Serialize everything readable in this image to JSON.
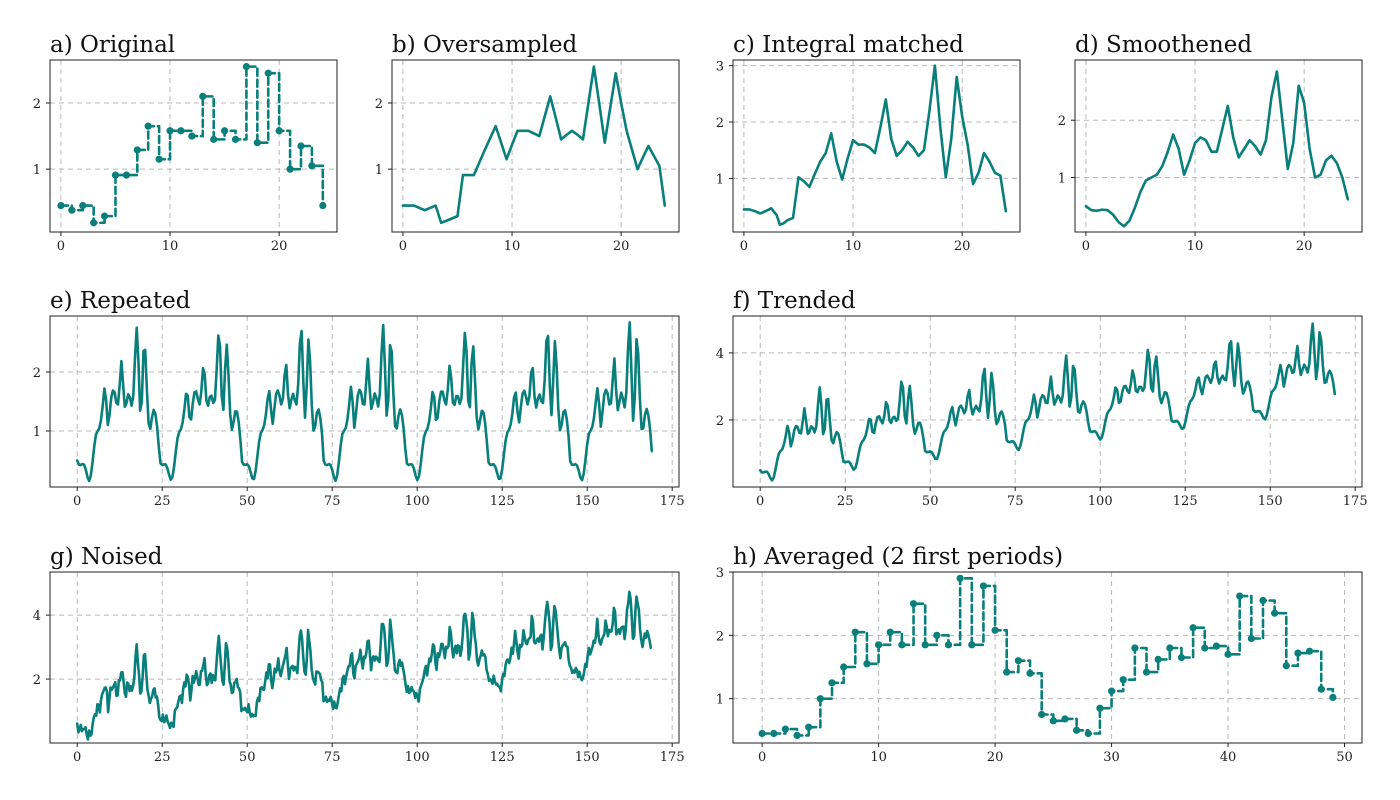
{
  "colors": {
    "series": "#087f7a",
    "grid": "#b8b8b8",
    "frame": "#222222"
  },
  "chart_data": [
    {
      "id": "a",
      "title": "a) Original",
      "type": "step",
      "markers": true,
      "dashed": true,
      "xlim": [
        -1,
        25.3
      ],
      "ylim": [
        0.05,
        2.65
      ],
      "xticks": [
        0,
        10,
        20
      ],
      "yticks": [
        1,
        2
      ],
      "grid": true,
      "x": [
        0,
        1,
        2,
        3,
        4,
        5,
        6,
        7,
        8,
        9,
        10,
        11,
        12,
        13,
        14,
        15,
        16,
        17,
        18,
        19,
        20,
        21,
        22,
        23,
        24
      ],
      "y": [
        0.45,
        0.38,
        0.45,
        0.19,
        0.29,
        0.91,
        0.91,
        1.29,
        1.65,
        1.15,
        1.58,
        1.58,
        1.5,
        2.1,
        1.45,
        1.58,
        1.45,
        2.55,
        1.4,
        2.45,
        1.58,
        1.0,
        1.35,
        1.05,
        0.45
      ]
    },
    {
      "id": "b",
      "title": "b) Oversampled",
      "type": "line",
      "xlim": [
        -1,
        25.3
      ],
      "ylim": [
        0.05,
        2.65
      ],
      "xticks": [
        0,
        10,
        20
      ],
      "yticks": [
        1,
        2
      ],
      "grid": true,
      "x": [
        0,
        1,
        2,
        3,
        3.5,
        4,
        5,
        5.5,
        6,
        6.5,
        7,
        7.5,
        8,
        8.5,
        9,
        9.5,
        10,
        10.5,
        11,
        11.5,
        12,
        12.5,
        13,
        13.5,
        14,
        14.5,
        15,
        15.5,
        16,
        16.5,
        17,
        17.5,
        18,
        18.5,
        19,
        19.5,
        20,
        20.5,
        21,
        21.5,
        22,
        22.5,
        23,
        23.5,
        24
      ],
      "y": [
        0.45,
        0.45,
        0.38,
        0.45,
        0.19,
        0.22,
        0.29,
        0.91,
        0.91,
        0.91,
        1.1,
        1.29,
        1.47,
        1.65,
        1.4,
        1.15,
        1.37,
        1.58,
        1.58,
        1.58,
        1.54,
        1.5,
        1.8,
        2.1,
        1.78,
        1.45,
        1.52,
        1.58,
        1.52,
        1.45,
        2.0,
        2.55,
        1.98,
        1.4,
        1.93,
        2.45,
        2.0,
        1.58,
        1.29,
        1.0,
        1.18,
        1.35,
        1.2,
        1.05,
        0.45
      ]
    },
    {
      "id": "c",
      "title": "c) Integral matched",
      "type": "line",
      "xlim": [
        -1,
        25.3
      ],
      "ylim": [
        0.05,
        3.1
      ],
      "xticks": [
        0,
        10,
        20
      ],
      "yticks": [
        1,
        2,
        3
      ],
      "grid": true,
      "x": [
        0,
        0.5,
        1,
        1.5,
        2,
        2.5,
        3,
        3.3,
        3.6,
        4,
        4.5,
        5,
        5.5,
        6,
        6.5,
        7,
        7.5,
        8,
        8.5,
        9,
        9.5,
        10,
        10.5,
        11,
        11.5,
        12,
        12.5,
        13,
        13.5,
        14,
        14.5,
        15,
        15.5,
        16,
        16.5,
        17,
        17.5,
        18,
        18.5,
        19,
        19.5,
        20,
        20.5,
        21,
        21.5,
        22,
        22.5,
        23,
        23.5,
        24
      ],
      "y": [
        0.45,
        0.45,
        0.42,
        0.38,
        0.42,
        0.47,
        0.35,
        0.18,
        0.2,
        0.26,
        0.3,
        1.02,
        0.95,
        0.85,
        1.08,
        1.3,
        1.45,
        1.8,
        1.3,
        0.98,
        1.35,
        1.68,
        1.6,
        1.6,
        1.55,
        1.45,
        1.9,
        2.4,
        1.7,
        1.4,
        1.5,
        1.65,
        1.55,
        1.4,
        1.5,
        2.2,
        3.0,
        1.9,
        1.02,
        1.7,
        2.8,
        2.1,
        1.6,
        0.9,
        1.1,
        1.45,
        1.3,
        1.1,
        1.05,
        0.42
      ]
    },
    {
      "id": "d",
      "title": "d) Smoothened",
      "type": "line",
      "xlim": [
        -1,
        25.3
      ],
      "ylim": [
        0.05,
        3.05
      ],
      "xticks": [
        0,
        10,
        20
      ],
      "yticks": [
        1,
        2
      ],
      "grid": true,
      "x": [
        0,
        0.5,
        1,
        1.5,
        2,
        2.5,
        3,
        3.5,
        4,
        4.5,
        5,
        5.5,
        6,
        6.5,
        7,
        7.5,
        8,
        8.5,
        9,
        9.5,
        10,
        10.5,
        11,
        11.5,
        12,
        12.5,
        13,
        13.5,
        14,
        14.5,
        15,
        15.5,
        16,
        16.5,
        17,
        17.5,
        18,
        18.5,
        19,
        19.5,
        20,
        20.5,
        21,
        21.5,
        22,
        22.5,
        23,
        23.5,
        24
      ],
      "y": [
        0.5,
        0.43,
        0.42,
        0.44,
        0.43,
        0.35,
        0.22,
        0.15,
        0.25,
        0.48,
        0.75,
        0.95,
        1.0,
        1.05,
        1.2,
        1.45,
        1.75,
        1.5,
        1.05,
        1.3,
        1.6,
        1.7,
        1.65,
        1.45,
        1.45,
        1.85,
        2.25,
        1.7,
        1.35,
        1.5,
        1.65,
        1.55,
        1.4,
        1.65,
        2.4,
        2.85,
        2.0,
        1.15,
        1.6,
        2.6,
        2.3,
        1.5,
        1.0,
        1.05,
        1.3,
        1.38,
        1.25,
        1.0,
        0.62
      ]
    },
    {
      "id": "e",
      "title": "e) Repeated",
      "type": "line",
      "generator": "repeat",
      "xlim": [
        -8,
        177
      ],
      "ylim": [
        0.05,
        2.95
      ],
      "xticks": [
        0,
        25,
        50,
        75,
        100,
        125,
        150,
        175
      ],
      "yticks": [
        1,
        2
      ],
      "grid": true,
      "period": 24.15,
      "repeats": 7,
      "x_end": 169,
      "base_from": "d"
    },
    {
      "id": "f",
      "title": "f) Trended",
      "type": "line",
      "generator": "trend",
      "xlim": [
        -8,
        177
      ],
      "ylim": [
        0.0,
        5.1
      ],
      "xticks": [
        0,
        25,
        50,
        75,
        100,
        125,
        150,
        175
      ],
      "yticks": [
        2,
        4
      ],
      "grid": true,
      "period": 24.15,
      "repeats": 7,
      "x_end": 169,
      "trend_per_unit": 0.0125,
      "base_from": "d"
    },
    {
      "id": "g",
      "title": "g) Noised",
      "type": "line",
      "generator": "noise",
      "xlim": [
        -8,
        177
      ],
      "ylim": [
        0.0,
        5.35
      ],
      "xticks": [
        0,
        25,
        50,
        75,
        100,
        125,
        150,
        175
      ],
      "yticks": [
        2,
        4
      ],
      "grid": true,
      "period": 24.15,
      "repeats": 7,
      "x_end": 169,
      "trend_per_unit": 0.0125,
      "noise_amp": 0.22,
      "base_from": "d"
    },
    {
      "id": "h",
      "title": "h) Averaged (2 first periods)",
      "type": "step",
      "markers": true,
      "dashed": true,
      "xlim": [
        -2.5,
        51.5
      ],
      "ylim": [
        0.3,
        3.0
      ],
      "xticks": [
        0,
        10,
        20,
        30,
        40,
        50
      ],
      "yticks": [
        1,
        2,
        3
      ],
      "grid": true,
      "x": [
        0,
        1,
        2,
        3,
        4,
        5,
        6,
        7,
        8,
        9,
        10,
        11,
        12,
        13,
        14,
        15,
        16,
        17,
        18,
        19,
        20,
        21,
        22,
        23,
        24,
        25,
        26,
        27,
        28,
        29,
        30,
        31,
        32,
        33,
        34,
        35,
        36,
        37,
        38,
        39,
        40,
        41,
        42,
        43,
        44,
        45,
        46,
        47,
        48,
        49
      ],
      "y": [
        0.45,
        0.45,
        0.52,
        0.42,
        0.55,
        1.0,
        1.25,
        1.5,
        2.05,
        1.55,
        1.85,
        2.05,
        1.85,
        2.5,
        1.85,
        2.0,
        1.85,
        2.9,
        1.85,
        2.78,
        2.08,
        1.42,
        1.6,
        1.4,
        0.75,
        0.65,
        0.68,
        0.5,
        0.45,
        0.85,
        1.12,
        1.3,
        1.8,
        1.42,
        1.62,
        1.8,
        1.65,
        2.12,
        1.8,
        1.83,
        1.7,
        2.62,
        1.95,
        2.55,
        2.35,
        1.52,
        1.72,
        1.75,
        1.15,
        1.02
      ]
    }
  ]
}
